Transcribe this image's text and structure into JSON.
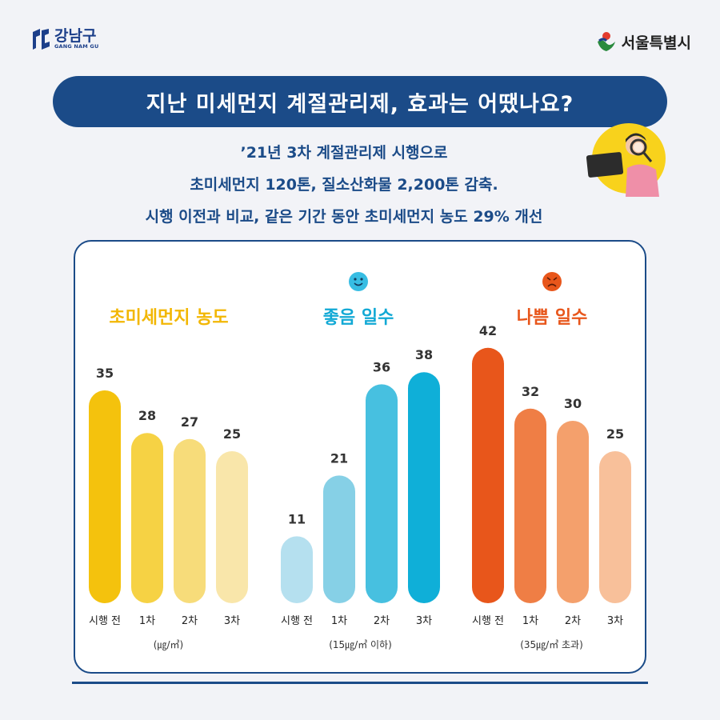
{
  "header": {
    "left_logo": {
      "name": "강남구",
      "sub": "GANG NAM GU"
    },
    "right_logo": {
      "name": "서울특별시"
    }
  },
  "title": "지난 미세먼지 계절관리제, 효과는 어땠나요?",
  "subtitle_lines": [
    "’21년 3차 계절관리제 시행으로",
    "초미세먼지 120톤, 질소산화물 2,200톤 감축.",
    "시행 이전과 비교, 같은 기간 동안 초미세먼지 농도 29% 개선"
  ],
  "colors": {
    "navy": "#1b4b88",
    "background": "#f2f3f7",
    "fine_dust": [
      "#f4c20d",
      "#f6d244",
      "#f7dc7a",
      "#f9e6aa"
    ],
    "good_days": [
      "#b5e0ef",
      "#86d0e6",
      "#47c0e0",
      "#0fafd8"
    ],
    "bad_days": [
      "#e8561b",
      "#ef7e45",
      "#f4a06c",
      "#f8c09a"
    ]
  },
  "chart_data": [
    {
      "type": "bar",
      "title": "초미세먼지 농도",
      "title_color": "#f2b705",
      "categories": [
        "시행 전",
        "1차",
        "2차",
        "3차"
      ],
      "values": [
        35,
        28,
        27,
        25
      ],
      "unit_note": "(㎍/㎥)"
    },
    {
      "type": "bar",
      "title": "좋음 일수",
      "title_color": "#12a9d5",
      "icon": "smile-face-icon",
      "categories": [
        "시행 전",
        "1차",
        "2차",
        "3차"
      ],
      "values": [
        11,
        21,
        36,
        38
      ],
      "unit_note": "(15㎍/㎥ 이하)"
    },
    {
      "type": "bar",
      "title": "나쁨 일수",
      "title_color": "#e8561b",
      "icon": "angry-face-icon",
      "categories": [
        "시행 전",
        "1차",
        "2차",
        "3차"
      ],
      "values": [
        42,
        32,
        30,
        25
      ],
      "unit_note": "(35㎍/㎥ 초과)"
    }
  ]
}
